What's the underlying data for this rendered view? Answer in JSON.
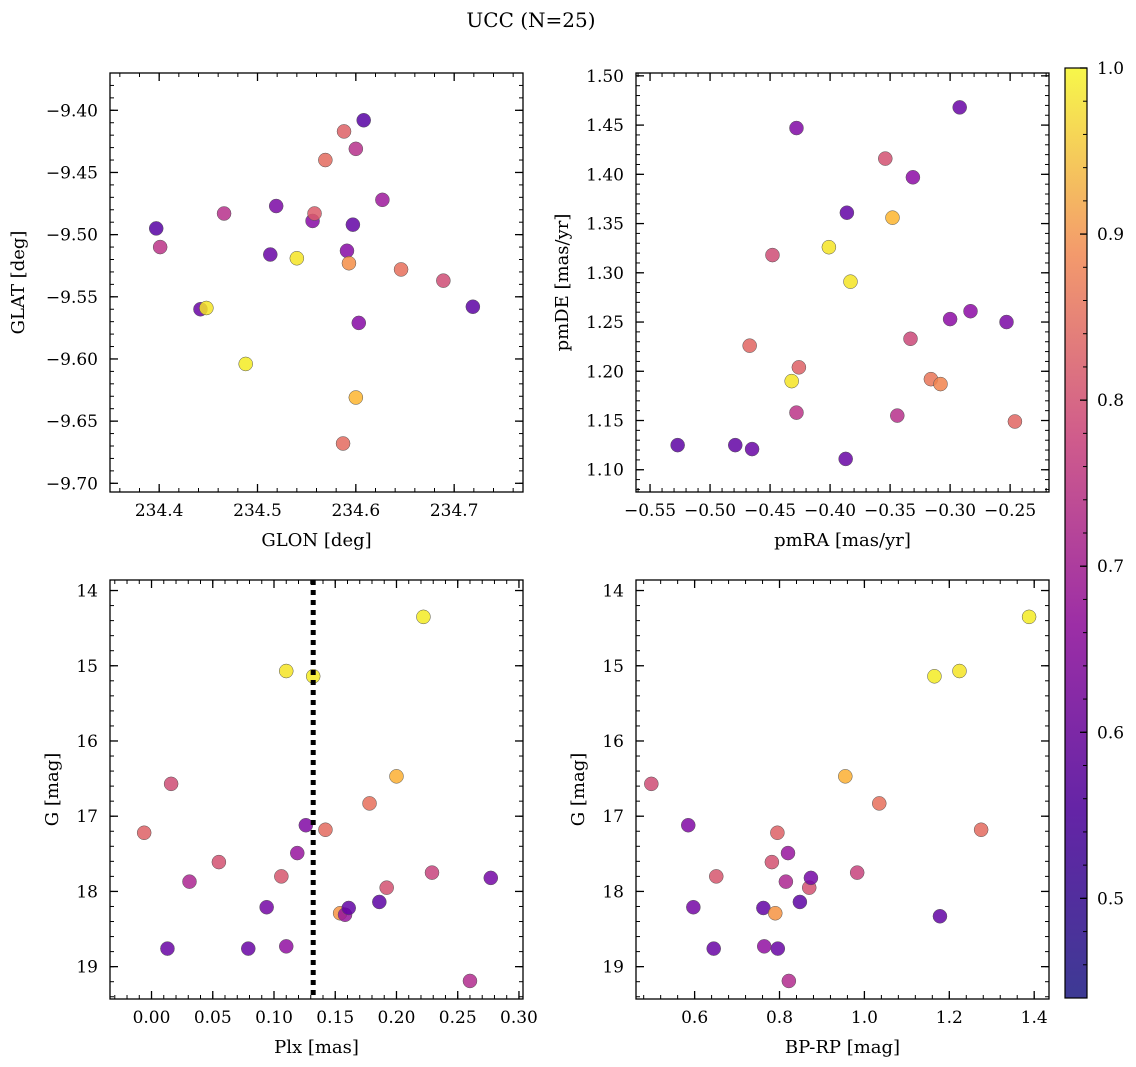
{
  "figure": {
    "title": "UCC (N=25)"
  },
  "colorbar": {
    "min": 0.44,
    "max": 1.0,
    "ticks": [
      0.5,
      0.6,
      0.7,
      0.8,
      0.9,
      1.0
    ],
    "tick_labels": [
      "0.5",
      "0.6",
      "0.7",
      "0.8",
      "0.9",
      "1.0"
    ],
    "colormap": "plasma"
  },
  "chart_data": [
    {
      "type": "scatter",
      "name": "glon-glat",
      "xlabel": "GLON [deg]",
      "ylabel": "GLAT [deg]",
      "xlim": [
        234.35,
        234.77
      ],
      "ylim": [
        -9.707,
        -9.37
      ],
      "y_inverted": false,
      "xticks": [
        234.4,
        234.5,
        234.6,
        234.7
      ],
      "xtick_labels": [
        "234.4",
        "234.5",
        "234.6",
        "234.7"
      ],
      "yticks": [
        -9.4,
        -9.45,
        -9.5,
        -9.55,
        -9.6,
        -9.65,
        -9.7
      ],
      "ytick_labels": [
        "−9.40",
        "−9.45",
        "−9.50",
        "−9.55",
        "−9.60",
        "−9.65",
        "−9.70"
      ],
      "points": [
        {
          "x": 234.397,
          "y": -9.495,
          "c": 0.47
        },
        {
          "x": 234.401,
          "y": -9.51,
          "c": 0.65
        },
        {
          "x": 234.442,
          "y": -9.56,
          "c": 0.5
        },
        {
          "x": 234.448,
          "y": -9.559,
          "c": 0.97
        },
        {
          "x": 234.466,
          "y": -9.483,
          "c": 0.64
        },
        {
          "x": 234.488,
          "y": -9.604,
          "c": 0.98
        },
        {
          "x": 234.513,
          "y": -9.516,
          "c": 0.5
        },
        {
          "x": 234.519,
          "y": -9.477,
          "c": 0.53
        },
        {
          "x": 234.54,
          "y": -9.519,
          "c": 0.97
        },
        {
          "x": 234.556,
          "y": -9.489,
          "c": 0.55
        },
        {
          "x": 234.558,
          "y": -9.483,
          "c": 0.73
        },
        {
          "x": 234.569,
          "y": -9.44,
          "c": 0.76
        },
        {
          "x": 234.588,
          "y": -9.417,
          "c": 0.74
        },
        {
          "x": 234.587,
          "y": -9.668,
          "c": 0.76
        },
        {
          "x": 234.591,
          "y": -9.513,
          "c": 0.55
        },
        {
          "x": 234.593,
          "y": -9.523,
          "c": 0.83
        },
        {
          "x": 234.597,
          "y": -9.492,
          "c": 0.49
        },
        {
          "x": 234.6,
          "y": -9.431,
          "c": 0.64
        },
        {
          "x": 234.6,
          "y": -9.631,
          "c": 0.9
        },
        {
          "x": 234.603,
          "y": -9.571,
          "c": 0.55
        },
        {
          "x": 234.608,
          "y": -9.408,
          "c": 0.47
        },
        {
          "x": 234.627,
          "y": -9.472,
          "c": 0.59
        },
        {
          "x": 234.646,
          "y": -9.528,
          "c": 0.77
        },
        {
          "x": 234.689,
          "y": -9.537,
          "c": 0.7
        },
        {
          "x": 234.719,
          "y": -9.558,
          "c": 0.48
        }
      ]
    },
    {
      "type": "scatter",
      "name": "pmra-pmde",
      "xlabel": "pmRA [mas/yr]",
      "ylabel": "pmDE [mas/yr]",
      "xlim": [
        -0.5617,
        -0.2176
      ],
      "ylim": [
        1.0774,
        1.5029
      ],
      "y_inverted": false,
      "xticks": [
        -0.55,
        -0.5,
        -0.45,
        -0.4,
        -0.35,
        -0.3,
        -0.25
      ],
      "xtick_labels": [
        "−0.55",
        "−0.50",
        "−0.45",
        "−0.40",
        "−0.35",
        "−0.30",
        "−0.25"
      ],
      "yticks": [
        1.1,
        1.15,
        1.2,
        1.25,
        1.3,
        1.35,
        1.4,
        1.45,
        1.5
      ],
      "ytick_labels": [
        "1.10",
        "1.15",
        "1.20",
        "1.25",
        "1.30",
        "1.35",
        "1.40",
        "1.45",
        "1.50"
      ],
      "points": [
        {
          "x": -0.527,
          "y": 1.125,
          "c": 0.48
        },
        {
          "x": -0.479,
          "y": 1.125,
          "c": 0.49
        },
        {
          "x": -0.465,
          "y": 1.121,
          "c": 0.5
        },
        {
          "x": -0.467,
          "y": 1.226,
          "c": 0.75
        },
        {
          "x": -0.448,
          "y": 1.318,
          "c": 0.7
        },
        {
          "x": -0.432,
          "y": 1.19,
          "c": 0.97
        },
        {
          "x": -0.428,
          "y": 1.447,
          "c": 0.54
        },
        {
          "x": -0.428,
          "y": 1.158,
          "c": 0.65
        },
        {
          "x": -0.426,
          "y": 1.204,
          "c": 0.74
        },
        {
          "x": -0.401,
          "y": 1.326,
          "c": 0.97
        },
        {
          "x": -0.387,
          "y": 1.111,
          "c": 0.5
        },
        {
          "x": -0.386,
          "y": 1.361,
          "c": 0.49
        },
        {
          "x": -0.383,
          "y": 1.291,
          "c": 0.97
        },
        {
          "x": -0.354,
          "y": 1.416,
          "c": 0.71
        },
        {
          "x": -0.348,
          "y": 1.356,
          "c": 0.9
        },
        {
          "x": -0.344,
          "y": 1.155,
          "c": 0.64
        },
        {
          "x": -0.333,
          "y": 1.233,
          "c": 0.69
        },
        {
          "x": -0.331,
          "y": 1.397,
          "c": 0.56
        },
        {
          "x": -0.316,
          "y": 1.192,
          "c": 0.78
        },
        {
          "x": -0.308,
          "y": 1.187,
          "c": 0.81
        },
        {
          "x": -0.3,
          "y": 1.253,
          "c": 0.56
        },
        {
          "x": -0.292,
          "y": 1.468,
          "c": 0.5
        },
        {
          "x": -0.283,
          "y": 1.261,
          "c": 0.56
        },
        {
          "x": -0.253,
          "y": 1.25,
          "c": 0.53
        },
        {
          "x": -0.246,
          "y": 1.149,
          "c": 0.75
        }
      ]
    },
    {
      "type": "scatter",
      "name": "plx-g",
      "xlabel": "Plx [mas]",
      "ylabel": "G [mag]",
      "xlim": [
        -0.0339,
        0.3033
      ],
      "ylim": [
        19.43,
        13.86
      ],
      "y_inverted": true,
      "vline": {
        "x": 0.132,
        "style": "dotted"
      },
      "xticks": [
        0.0,
        0.05,
        0.1,
        0.15,
        0.2,
        0.25,
        0.3
      ],
      "xtick_labels": [
        "0.00",
        "0.05",
        "0.10",
        "0.15",
        "0.20",
        "0.25",
        "0.30"
      ],
      "yticks": [
        14,
        15,
        16,
        17,
        18,
        19
      ],
      "ytick_labels": [
        "14",
        "15",
        "16",
        "17",
        "18",
        "19"
      ],
      "points": [
        {
          "x": -0.006,
          "y": 17.22,
          "c": 0.74
        },
        {
          "x": 0.013,
          "y": 18.76,
          "c": 0.5
        },
        {
          "x": 0.016,
          "y": 16.57,
          "c": 0.7
        },
        {
          "x": 0.031,
          "y": 17.87,
          "c": 0.62
        },
        {
          "x": 0.055,
          "y": 17.61,
          "c": 0.71
        },
        {
          "x": 0.079,
          "y": 18.76,
          "c": 0.5
        },
        {
          "x": 0.094,
          "y": 18.21,
          "c": 0.52
        },
        {
          "x": 0.106,
          "y": 17.8,
          "c": 0.72
        },
        {
          "x": 0.11,
          "y": 18.73,
          "c": 0.57
        },
        {
          "x": 0.11,
          "y": 15.07,
          "c": 0.97
        },
        {
          "x": 0.119,
          "y": 17.49,
          "c": 0.58
        },
        {
          "x": 0.126,
          "y": 17.12,
          "c": 0.54
        },
        {
          "x": 0.132,
          "y": 15.14,
          "c": 0.98
        },
        {
          "x": 0.142,
          "y": 17.18,
          "c": 0.76
        },
        {
          "x": 0.154,
          "y": 18.29,
          "c": 0.84
        },
        {
          "x": 0.158,
          "y": 18.31,
          "c": 0.58
        },
        {
          "x": 0.161,
          "y": 18.22,
          "c": 0.49
        },
        {
          "x": 0.178,
          "y": 16.83,
          "c": 0.77
        },
        {
          "x": 0.186,
          "y": 18.14,
          "c": 0.48
        },
        {
          "x": 0.192,
          "y": 17.95,
          "c": 0.71
        },
        {
          "x": 0.2,
          "y": 16.47,
          "c": 0.89
        },
        {
          "x": 0.222,
          "y": 14.35,
          "c": 0.98
        },
        {
          "x": 0.229,
          "y": 17.75,
          "c": 0.68
        },
        {
          "x": 0.26,
          "y": 19.19,
          "c": 0.63
        },
        {
          "x": 0.277,
          "y": 17.82,
          "c": 0.52
        }
      ]
    },
    {
      "type": "scatter",
      "name": "bprp-g",
      "xlabel": "BP-RP [mag]",
      "ylabel": "G [mag]",
      "xlim": [
        0.4619,
        1.4349
      ],
      "ylim": [
        19.43,
        13.86
      ],
      "y_inverted": true,
      "xticks": [
        0.6,
        0.8,
        1.0,
        1.2,
        1.4
      ],
      "xtick_labels": [
        "0.6",
        "0.8",
        "1.0",
        "1.2",
        "1.4"
      ],
      "yticks": [
        14,
        15,
        16,
        17,
        18,
        19
      ],
      "ytick_labels": [
        "14",
        "15",
        "16",
        "17",
        "18",
        "19"
      ],
      "points": [
        {
          "x": 0.498,
          "y": 16.57,
          "c": 0.7
        },
        {
          "x": 0.585,
          "y": 17.12,
          "c": 0.54
        },
        {
          "x": 0.597,
          "y": 18.21,
          "c": 0.52
        },
        {
          "x": 0.645,
          "y": 18.76,
          "c": 0.5
        },
        {
          "x": 0.651,
          "y": 17.8,
          "c": 0.72
        },
        {
          "x": 0.762,
          "y": 18.22,
          "c": 0.49
        },
        {
          "x": 0.764,
          "y": 18.73,
          "c": 0.57
        },
        {
          "x": 0.782,
          "y": 17.61,
          "c": 0.71
        },
        {
          "x": 0.79,
          "y": 18.29,
          "c": 0.84
        },
        {
          "x": 0.795,
          "y": 17.22,
          "c": 0.74
        },
        {
          "x": 0.796,
          "y": 18.76,
          "c": 0.5
        },
        {
          "x": 0.815,
          "y": 17.87,
          "c": 0.62
        },
        {
          "x": 0.82,
          "y": 17.49,
          "c": 0.58
        },
        {
          "x": 0.822,
          "y": 19.19,
          "c": 0.63
        },
        {
          "x": 0.848,
          "y": 18.14,
          "c": 0.48
        },
        {
          "x": 0.87,
          "y": 17.95,
          "c": 0.71
        },
        {
          "x": 0.874,
          "y": 17.82,
          "c": 0.52
        },
        {
          "x": 0.955,
          "y": 16.47,
          "c": 0.89
        },
        {
          "x": 0.983,
          "y": 17.75,
          "c": 0.68
        },
        {
          "x": 1.035,
          "y": 16.83,
          "c": 0.77
        },
        {
          "x": 1.165,
          "y": 15.14,
          "c": 0.98
        },
        {
          "x": 1.178,
          "y": 18.33,
          "c": 0.49
        },
        {
          "x": 1.224,
          "y": 15.07,
          "c": 0.97
        },
        {
          "x": 1.275,
          "y": 17.18,
          "c": 0.76
        },
        {
          "x": 1.388,
          "y": 14.35,
          "c": 0.98
        }
      ]
    }
  ]
}
